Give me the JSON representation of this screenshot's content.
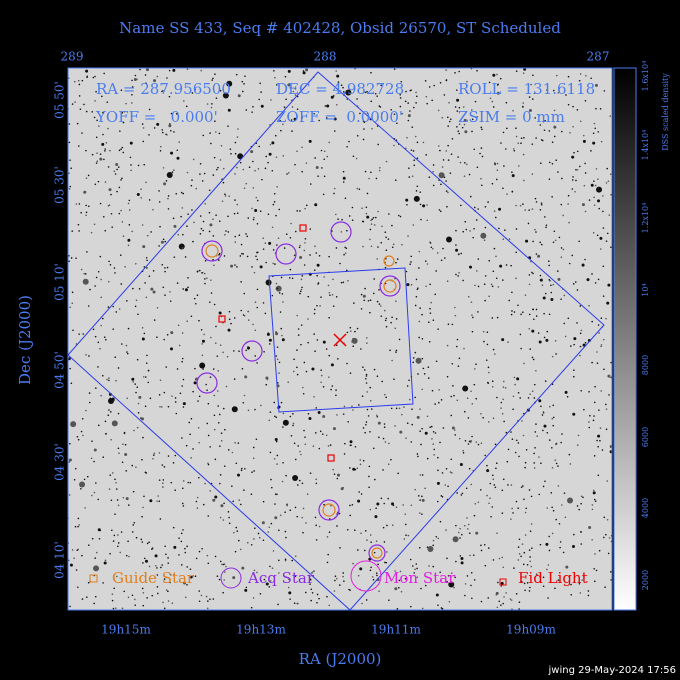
{
  "header": {
    "title": "Name SS 433, Seq # 402428, Obsid 26570, ST Scheduled"
  },
  "top_ticks": [
    "289",
    "288",
    "287"
  ],
  "info": {
    "ra": "RA = 287.956500",
    "dec": "DEC = 4.982728",
    "roll": "ROLL = 131.6118",
    "yoff": "YOFF =   0.000'",
    "zoff": "ZOFF =  0.0000'",
    "zsim": "ZSIM = 0 mm"
  },
  "y_ticks": [
    "05 50'",
    "05 30'",
    "05 10'",
    "04 50'",
    "04 30'",
    "04 10'"
  ],
  "x_ticks": [
    "19h15m",
    "19h13m",
    "19h11m",
    "19h09m"
  ],
  "x_label": "RA (J2000)",
  "y_label": "Dec (J2000)",
  "legend": [
    "Guide Star",
    "Acq Star",
    "Mon Star",
    "Fid Light"
  ],
  "colorbar": {
    "label": "DSS scaled density",
    "ticks": [
      "2000",
      "4000",
      "6000",
      "8000",
      "10⁴",
      "1.2x10⁴",
      "1.4x10⁴",
      "1.6x10⁴"
    ]
  },
  "footer": "jwing 29-May-2024 17:56"
}
